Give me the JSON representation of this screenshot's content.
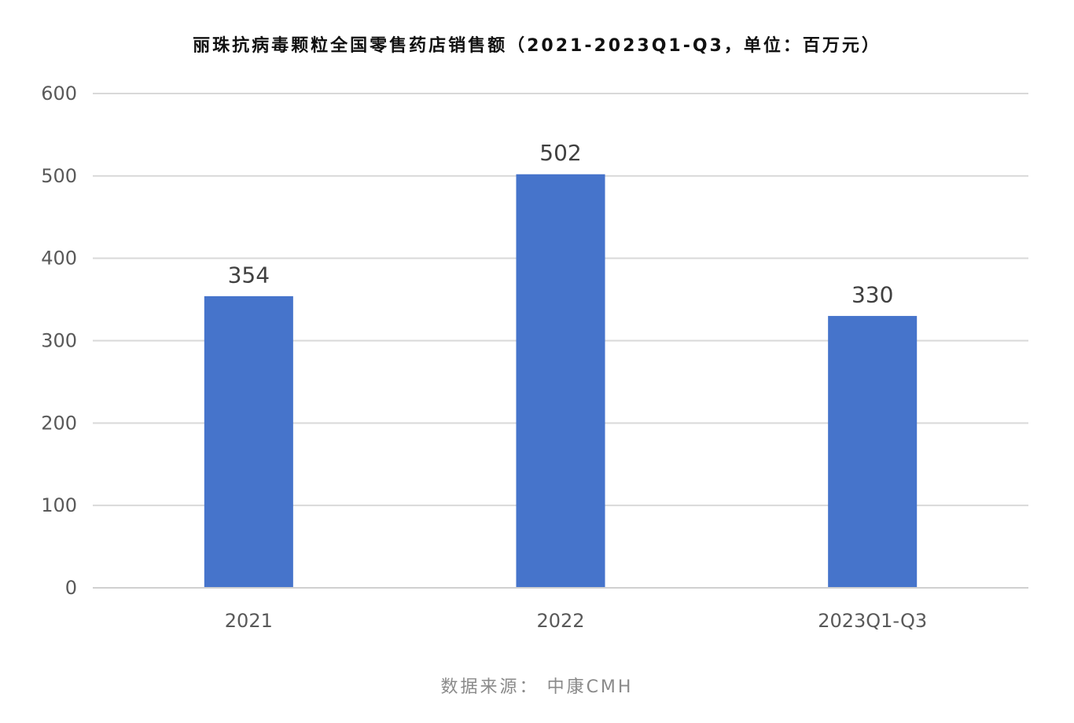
{
  "chart_data": {
    "type": "bar",
    "title": "丽珠抗病毒颗粒全国零售药店销售额（2021-2023Q1-Q3，单位：百万元）",
    "categories": [
      "2021",
      "2022",
      "2023Q1-Q3"
    ],
    "values": [
      354,
      502,
      330
    ],
    "data_labels": [
      "354",
      "502",
      "330"
    ],
    "xlabel": "",
    "ylabel": "",
    "ylim": [
      0,
      600
    ],
    "yticks": [
      0,
      100,
      200,
      300,
      400,
      500,
      600
    ],
    "ytick_labels": [
      "0",
      "100",
      "200",
      "300",
      "400",
      "500",
      "600"
    ],
    "grid": true,
    "legend": "none",
    "bar_color": "#4674CB",
    "grid_color": "#D9D9D9",
    "axis_color": "#D0D0D0"
  },
  "footer": {
    "source_label": "数据来源：",
    "source_value": "中康CMH"
  }
}
